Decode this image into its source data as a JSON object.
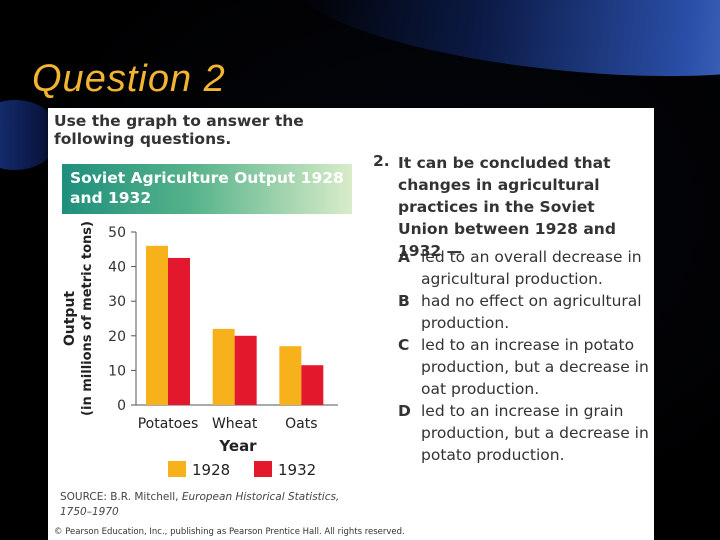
{
  "slide": {
    "title": "Question 2"
  },
  "panel": {
    "instructions": "Use the graph to answer the following questions.",
    "source_prefix": "SOURCE: B.R. Mitchell, ",
    "source_title": "European Historical Statistics, 1750–1970",
    "copyright": "© Pearson Education, Inc., publishing as Pearson Prentice Hall. All rights reserved."
  },
  "question": {
    "number": "2.",
    "stem": "It can be concluded that changes in agricultural practices in the Soviet Union between 1928 and 1932 —",
    "options": [
      {
        "letter": "A",
        "text": "led to an overall decrease in agricultural production."
      },
      {
        "letter": "B",
        "text": "had no effect on agricultural production."
      },
      {
        "letter": "C",
        "text": "led to an increase in potato production, but a decrease in oat production."
      },
      {
        "letter": "D",
        "text": "led to an increase in grain production, but a decrease in potato production."
      }
    ]
  },
  "colors": {
    "series_1928": "#f7b21b",
    "series_1932": "#e3182d",
    "slide_title": "#f2b431"
  },
  "chart_data": {
    "type": "bar",
    "title": "Soviet Agriculture Output 1928 and 1932",
    "xlabel": "Year",
    "ylabel": "Output (in millions of metric tons)",
    "ylim": [
      0,
      50
    ],
    "yticks": [
      0,
      10,
      20,
      30,
      40,
      50
    ],
    "categories": [
      "Potatoes",
      "Wheat",
      "Oats"
    ],
    "series": [
      {
        "name": "1928",
        "values": [
          46,
          22,
          17
        ]
      },
      {
        "name": "1932",
        "values": [
          42.5,
          20,
          11.5
        ]
      }
    ],
    "legend": "bottom"
  }
}
